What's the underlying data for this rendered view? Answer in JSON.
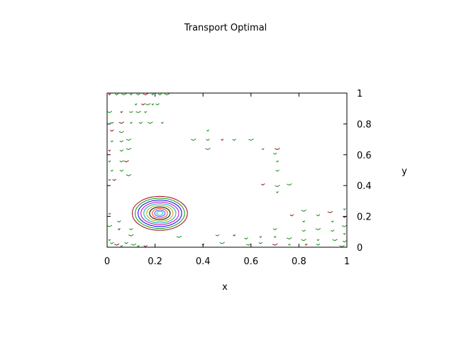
{
  "chart_data": {
    "type": "contour",
    "title": "Transport Optimal",
    "xlabel": "x",
    "ylabel": "y",
    "xlim": [
      0,
      1
    ],
    "ylim": [
      0,
      1
    ],
    "x_ticks": [
      {
        "value": 0,
        "label": "0"
      },
      {
        "value": 0.2,
        "label": "0.2"
      },
      {
        "value": 0.4,
        "label": "0.4"
      },
      {
        "value": 0.6,
        "label": "0.6"
      },
      {
        "value": 0.8,
        "label": "0.8"
      },
      {
        "value": 1,
        "label": "1"
      }
    ],
    "y_ticks": [
      {
        "value": 0,
        "label": "0"
      },
      {
        "value": 0.2,
        "label": "0.2"
      },
      {
        "value": 0.4,
        "label": "0.4"
      },
      {
        "value": 0.6,
        "label": "0.6"
      },
      {
        "value": 0.8,
        "label": "0.8"
      },
      {
        "value": 1,
        "label": "1"
      }
    ],
    "y_axis_side": "right",
    "grid": false,
    "legend": "none",
    "peak": {
      "x": 0.22,
      "y": 0.22
    },
    "contour_levels": [
      {
        "rx": 0.115,
        "ry": 0.11,
        "color": "#a0001e"
      },
      {
        "rx": 0.103,
        "ry": 0.098,
        "color": "#00a000"
      },
      {
        "rx": 0.091,
        "ry": 0.086,
        "color": "#0000ff"
      },
      {
        "rx": 0.079,
        "ry": 0.074,
        "color": "#c000c0"
      },
      {
        "rx": 0.067,
        "ry": 0.063,
        "color": "#00b0b0"
      },
      {
        "rx": 0.055,
        "ry": 0.052,
        "color": "#b8a000"
      },
      {
        "rx": 0.043,
        "ry": 0.041,
        "color": "#000000"
      },
      {
        "rx": 0.032,
        "ry": 0.031,
        "color": "#ff4000"
      },
      {
        "rx": 0.022,
        "ry": 0.021,
        "color": "#5050ff"
      },
      {
        "rx": 0.013,
        "ry": 0.013,
        "color": "#00c0c0"
      }
    ],
    "noise_marks": [
      {
        "x": 0.01,
        "y": 0.995
      },
      {
        "x": 0.04,
        "y": 0.995
      },
      {
        "x": 0.07,
        "y": 0.995
      },
      {
        "x": 0.1,
        "y": 0.995
      },
      {
        "x": 0.13,
        "y": 0.995
      },
      {
        "x": 0.16,
        "y": 0.995
      },
      {
        "x": 0.19,
        "y": 0.995
      },
      {
        "x": 0.22,
        "y": 0.995
      },
      {
        "x": 0.25,
        "y": 0.995
      },
      {
        "x": 0.12,
        "y": 0.93
      },
      {
        "x": 0.15,
        "y": 0.93
      },
      {
        "x": 0.17,
        "y": 0.93
      },
      {
        "x": 0.19,
        "y": 0.93
      },
      {
        "x": 0.21,
        "y": 0.93
      },
      {
        "x": 0.01,
        "y": 0.88
      },
      {
        "x": 0.06,
        "y": 0.88
      },
      {
        "x": 0.1,
        "y": 0.88
      },
      {
        "x": 0.13,
        "y": 0.88
      },
      {
        "x": 0.16,
        "y": 0.88
      },
      {
        "x": 0.02,
        "y": 0.81
      },
      {
        "x": 0.06,
        "y": 0.81
      },
      {
        "x": 0.1,
        "y": 0.81
      },
      {
        "x": 0.14,
        "y": 0.81
      },
      {
        "x": 0.18,
        "y": 0.81
      },
      {
        "x": 0.23,
        "y": 0.81
      },
      {
        "x": 0.02,
        "y": 0.76
      },
      {
        "x": 0.06,
        "y": 0.75
      },
      {
        "x": 0.02,
        "y": 0.69
      },
      {
        "x": 0.06,
        "y": 0.69
      },
      {
        "x": 0.09,
        "y": 0.7
      },
      {
        "x": 0.01,
        "y": 0.63
      },
      {
        "x": 0.06,
        "y": 0.63
      },
      {
        "x": 0.09,
        "y": 0.64
      },
      {
        "x": 0.01,
        "y": 0.56
      },
      {
        "x": 0.06,
        "y": 0.56
      },
      {
        "x": 0.08,
        "y": 0.56
      },
      {
        "x": 0.02,
        "y": 0.5
      },
      {
        "x": 0.06,
        "y": 0.5
      },
      {
        "x": 0.09,
        "y": 0.47
      },
      {
        "x": 0.01,
        "y": 0.44
      },
      {
        "x": 0.03,
        "y": 0.44
      },
      {
        "x": 0.36,
        "y": 0.7
      },
      {
        "x": 0.42,
        "y": 0.76
      },
      {
        "x": 0.42,
        "y": 0.7
      },
      {
        "x": 0.42,
        "y": 0.64
      },
      {
        "x": 0.48,
        "y": 0.7
      },
      {
        "x": 0.53,
        "y": 0.7
      },
      {
        "x": 0.6,
        "y": 0.7
      },
      {
        "x": 0.65,
        "y": 0.64
      },
      {
        "x": 0.7,
        "y": 0.61
      },
      {
        "x": 0.71,
        "y": 0.64
      },
      {
        "x": 0.71,
        "y": 0.56
      },
      {
        "x": 0.71,
        "y": 0.5
      },
      {
        "x": 0.71,
        "y": 0.4
      },
      {
        "x": 0.71,
        "y": 0.36
      },
      {
        "x": 0.65,
        "y": 0.41
      },
      {
        "x": 0.76,
        "y": 0.41
      },
      {
        "x": 0.01,
        "y": 0.22
      },
      {
        "x": 0.05,
        "y": 0.17
      },
      {
        "x": 0.01,
        "y": 0.14
      },
      {
        "x": 0.05,
        "y": 0.12
      },
      {
        "x": 0.1,
        "y": 0.12
      },
      {
        "x": 0.1,
        "y": 0.08
      },
      {
        "x": 0.01,
        "y": 0.05
      },
      {
        "x": 0.02,
        "y": 0.03
      },
      {
        "x": 0.04,
        "y": 0.02
      },
      {
        "x": 0.06,
        "y": 0.01
      },
      {
        "x": 0.08,
        "y": 0.03
      },
      {
        "x": 0.11,
        "y": 0.02
      },
      {
        "x": 0.13,
        "y": 0.01
      },
      {
        "x": 0.16,
        "y": 0.01
      },
      {
        "x": 0.3,
        "y": 0.07
      },
      {
        "x": 0.4,
        "y": 0.02
      },
      {
        "x": 0.46,
        "y": 0.08
      },
      {
        "x": 0.48,
        "y": 0.03
      },
      {
        "x": 0.53,
        "y": 0.08
      },
      {
        "x": 0.58,
        "y": 0.06
      },
      {
        "x": 0.59,
        "y": 0.02
      },
      {
        "x": 0.64,
        "y": 0.07
      },
      {
        "x": 0.64,
        "y": 0.03
      },
      {
        "x": 0.7,
        "y": 0.02
      },
      {
        "x": 0.7,
        "y": 0.07
      },
      {
        "x": 0.7,
        "y": 0.12
      },
      {
        "x": 0.76,
        "y": 0.06
      },
      {
        "x": 0.76,
        "y": 0.02
      },
      {
        "x": 0.77,
        "y": 0.21
      },
      {
        "x": 0.82,
        "y": 0.24
      },
      {
        "x": 0.82,
        "y": 0.17
      },
      {
        "x": 0.82,
        "y": 0.11
      },
      {
        "x": 0.82,
        "y": 0.05
      },
      {
        "x": 0.83,
        "y": 0.02
      },
      {
        "x": 0.88,
        "y": 0.21
      },
      {
        "x": 0.88,
        "y": 0.12
      },
      {
        "x": 0.88,
        "y": 0.05
      },
      {
        "x": 0.88,
        "y": 0.02
      },
      {
        "x": 0.93,
        "y": 0.23
      },
      {
        "x": 0.94,
        "y": 0.17
      },
      {
        "x": 0.94,
        "y": 0.11
      },
      {
        "x": 0.95,
        "y": 0.05
      },
      {
        "x": 0.99,
        "y": 0.25
      },
      {
        "x": 0.99,
        "y": 0.2
      },
      {
        "x": 0.99,
        "y": 0.14
      },
      {
        "x": 0.99,
        "y": 0.09
      },
      {
        "x": 0.99,
        "y": 0.04
      },
      {
        "x": 0.98,
        "y": 0.01
      }
    ]
  }
}
